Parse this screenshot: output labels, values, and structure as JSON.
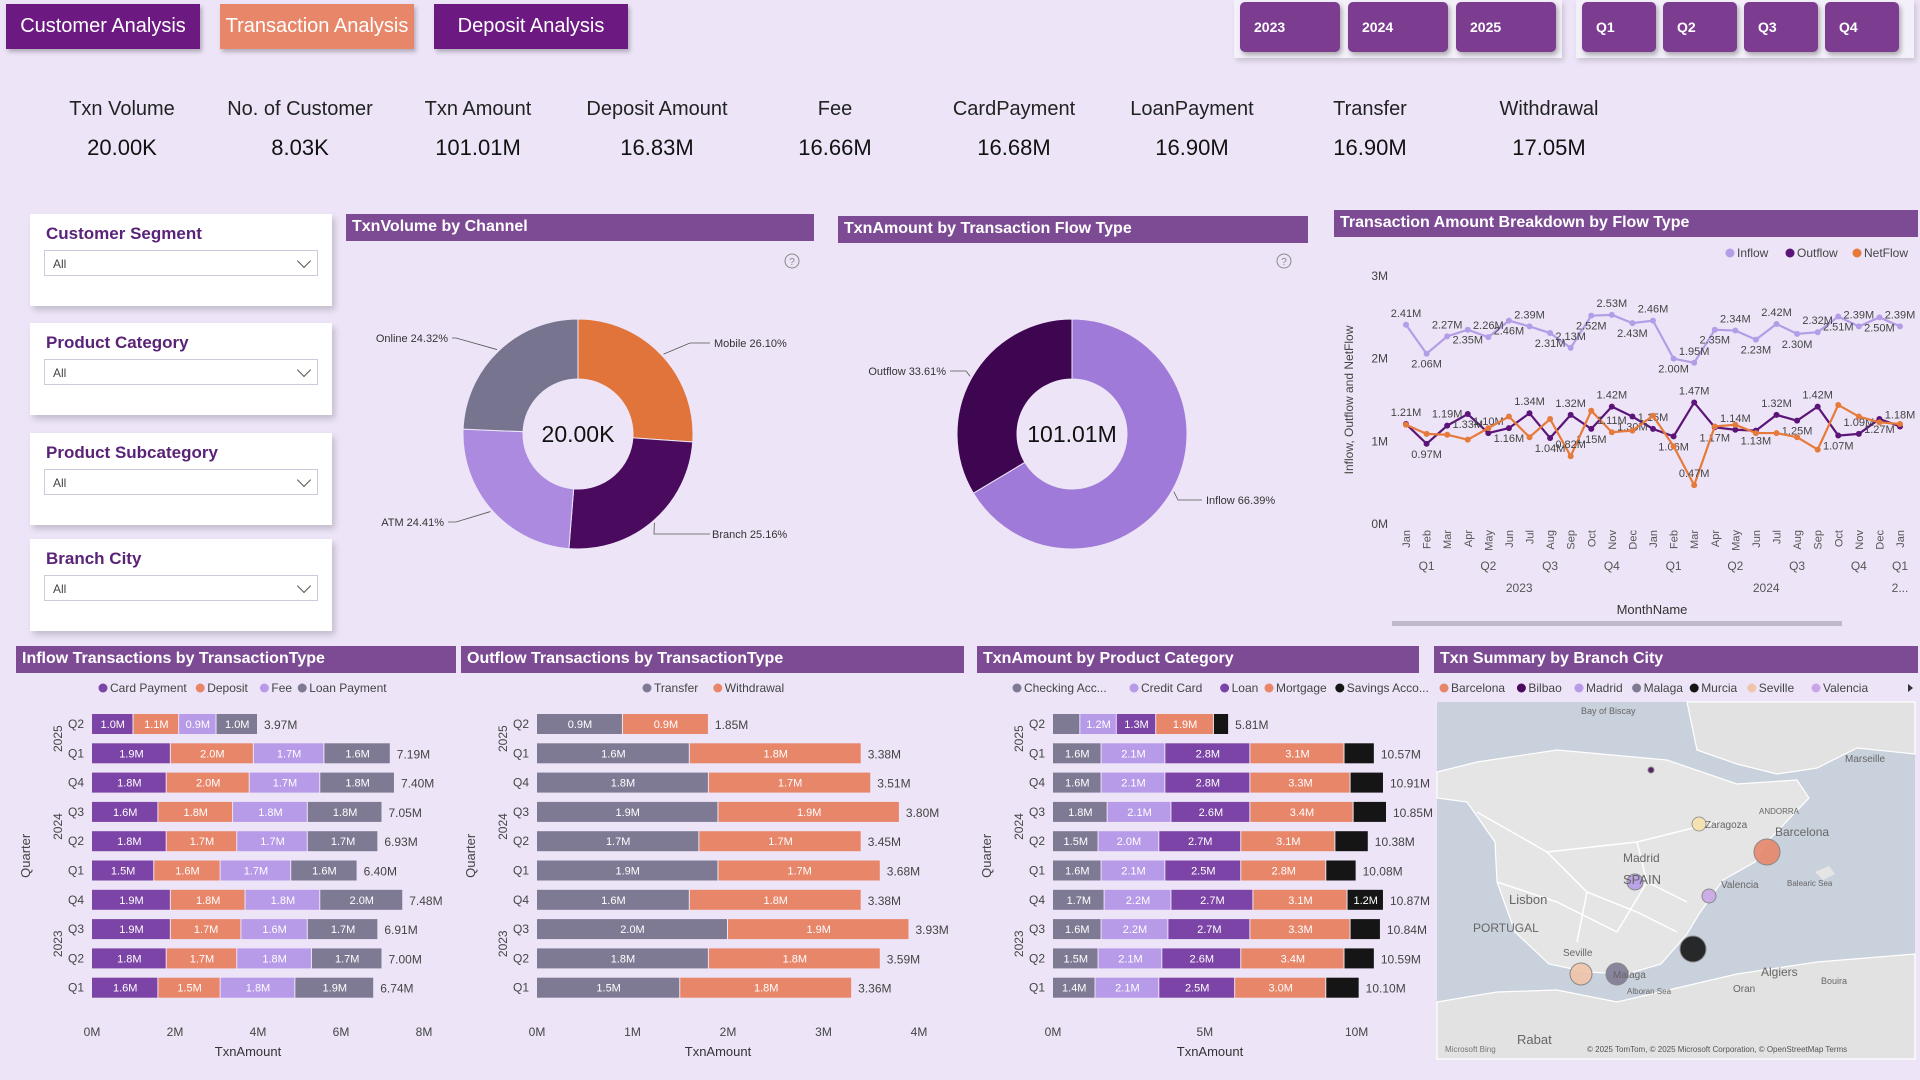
{
  "nav": {
    "customer": "Customer Analysis",
    "transaction": "Transaction Analysis",
    "deposit": "Deposit Analysis"
  },
  "years": [
    "2023",
    "2024",
    "2025"
  ],
  "quarters": [
    "Q1",
    "Q2",
    "Q3",
    "Q4"
  ],
  "kpis": [
    {
      "label": "Txn Volume",
      "value": "20.00K"
    },
    {
      "label": "No. of Customer",
      "value": "8.03K"
    },
    {
      "label": "Txn Amount",
      "value": "101.01M"
    },
    {
      "label": "Deposit Amount",
      "value": "16.83M"
    },
    {
      "label": "Fee",
      "value": "16.66M"
    },
    {
      "label": "CardPayment",
      "value": "16.68M"
    },
    {
      "label": "LoanPayment",
      "value": "16.90M"
    },
    {
      "label": "Transfer",
      "value": "16.90M"
    },
    {
      "label": "Withdrawal",
      "value": "17.05M"
    }
  ],
  "filters": [
    {
      "title": "Customer Segment",
      "value": "All"
    },
    {
      "title": "Product Category",
      "value": "All"
    },
    {
      "title": "Product Subcategory",
      "value": "All"
    },
    {
      "title": "Branch City",
      "value": "All"
    }
  ],
  "colors": {
    "accent": "#6c1a82",
    "orange": "#e8866a",
    "panel": "#7c4b94"
  },
  "icons": {
    "help": "question-circle-icon",
    "chevron": "chevron-down-icon"
  },
  "donut1": {
    "title": "TxnVolume by Channel",
    "center": "20.00K",
    "chart_data": {
      "type": "pie",
      "slices": [
        {
          "name": "Mobile",
          "pct": 26.1,
          "label": "Mobile 26.10%",
          "color": "#e0743a"
        },
        {
          "name": "Branch",
          "pct": 25.16,
          "label": "Branch 25.16%",
          "color": "#4a0a5e"
        },
        {
          "name": "ATM",
          "pct": 24.41,
          "label": "ATM 24.41%",
          "color": "#ac8ae0"
        },
        {
          "name": "Online",
          "pct": 24.32,
          "label": "Online 24.32%",
          "color": "#777490"
        }
      ]
    }
  },
  "donut2": {
    "title": "TxnAmount by Transaction Flow Type",
    "center": "101.01M",
    "chart_data": {
      "type": "pie",
      "slices": [
        {
          "name": "Inflow",
          "pct": 66.39,
          "label": "Inflow 66.39%",
          "color": "#a07ad8"
        },
        {
          "name": "Outflow",
          "pct": 33.61,
          "label": "Outflow 33.61%",
          "color": "#3e0650"
        }
      ]
    }
  },
  "linechart": {
    "title": "Transaction Amount Breakdown by Flow Type",
    "legend": [
      "Inflow",
      "Outflow",
      "NetFlow"
    ],
    "ylabel": "Inflow, Outflow and NetFlow",
    "xlabel": "MonthName",
    "yticks": [
      "3M",
      "2M",
      "1M",
      "0M"
    ],
    "months": [
      "Jan",
      "Feb",
      "Mar",
      "Apr",
      "May",
      "Jun",
      "Jul",
      "Aug",
      "Sep",
      "Oct",
      "Nov",
      "Dec",
      "Jan",
      "Feb",
      "Mar",
      "Apr",
      "May",
      "Jun",
      "Jul",
      "Aug",
      "Sep",
      "Oct",
      "Nov",
      "Dec",
      "Jan"
    ],
    "quarter_labels": [
      "Q1",
      "Q2",
      "Q3",
      "Q4",
      "Q1",
      "Q2",
      "Q3",
      "Q4",
      "Q1"
    ],
    "year_labels": [
      "2023",
      "2024",
      "2..."
    ],
    "chart_data": {
      "type": "line",
      "ylim": [
        0,
        3
      ],
      "series": [
        {
          "name": "Inflow",
          "color": "#b39de6",
          "values": [
            2.41,
            2.06,
            2.27,
            2.35,
            2.26,
            2.46,
            2.39,
            2.31,
            2.13,
            2.52,
            2.53,
            2.43,
            2.46,
            2.0,
            1.95,
            2.35,
            2.34,
            2.23,
            2.42,
            2.3,
            2.32,
            2.51,
            2.39,
            2.5,
            2.39
          ],
          "labels": [
            "2.41M",
            "2.06M",
            "2.27M",
            "2.35M",
            "2.26M",
            "2.46M",
            "2.39M",
            "2.31M",
            "2.13M",
            "2.52M",
            "2.53M",
            "2.43M",
            "2.46M",
            "2.00M",
            "1.95M",
            "2.35M",
            "2.34M",
            "2.23M",
            "2.42M",
            "2.30M",
            "2.32M",
            "2.51M",
            "2.39M",
            "2.50M",
            "2.39M"
          ]
        },
        {
          "name": "Outflow",
          "color": "#5b1477",
          "values": [
            1.21,
            0.97,
            1.19,
            1.33,
            1.1,
            1.16,
            1.34,
            1.04,
            1.32,
            1.15,
            1.42,
            1.3,
            1.15,
            1.06,
            1.47,
            1.17,
            1.14,
            1.13,
            1.32,
            1.25,
            1.42,
            1.07,
            1.09,
            1.27,
            1.18
          ],
          "labels": [
            "1.21M",
            "0.97M",
            "1.19M",
            "1.33M",
            "1.10M",
            "1.16M",
            "1.34M",
            "1.04M",
            "1.32M",
            "1.15M",
            "1.42M",
            "1.30M",
            "1.15M",
            "1.06M",
            "1.47M",
            "1.17M",
            "1.14M",
            "1.13M",
            "1.32M",
            "1.25M",
            "1.42M",
            "1.07M",
            "1.09M",
            "1.27M",
            "1.18M"
          ]
        },
        {
          "name": "NetFlow",
          "color": "#e67a3a",
          "values": [
            1.2,
            1.09,
            1.08,
            1.02,
            1.16,
            1.3,
            1.05,
            1.27,
            0.82,
            1.37,
            1.11,
            1.13,
            1.31,
            0.94,
            0.47,
            1.18,
            1.2,
            1.1,
            1.1,
            1.05,
            0.9,
            1.44,
            1.3,
            1.23,
            1.21
          ],
          "labels": [
            "",
            "",
            "",
            "",
            "",
            "",
            "",
            "",
            "0.82M",
            "",
            "1.11M",
            "",
            "",
            "",
            "0.47M",
            "",
            "",
            "",
            "",
            "",
            "",
            "",
            "",
            "",
            ""
          ]
        }
      ]
    }
  },
  "inflow_bars": {
    "title": "Inflow Transactions by TransactionType",
    "legend": [
      {
        "name": "Card Payment",
        "color": "#7b44a6"
      },
      {
        "name": "Deposit",
        "color": "#e8866a"
      },
      {
        "name": "Fee",
        "color": "#b79ae8"
      },
      {
        "name": "Loan Payment",
        "color": "#7e7a94"
      }
    ],
    "xlabel": "TxnAmount",
    "ylabel": "Quarter",
    "xticks": [
      "0M",
      "2M",
      "4M",
      "6M",
      "8M"
    ],
    "chart_data": {
      "type": "bar",
      "xlim": [
        0,
        8
      ],
      "rows": [
        {
          "year": "2025",
          "q": "Q2",
          "values": [
            1.0,
            1.1,
            0.9,
            1.0
          ],
          "labels": [
            "1.0M",
            "1.1M",
            "0.9M",
            "1.0M"
          ],
          "total": "3.97M"
        },
        {
          "year": "2025",
          "q": "Q1",
          "values": [
            1.9,
            2.0,
            1.7,
            1.6
          ],
          "labels": [
            "1.9M",
            "2.0M",
            "1.7M",
            "1.6M"
          ],
          "total": "7.19M"
        },
        {
          "year": "2024",
          "q": "Q4",
          "values": [
            1.8,
            2.0,
            1.7,
            1.8
          ],
          "labels": [
            "1.8M",
            "2.0M",
            "1.7M",
            "1.8M"
          ],
          "total": "7.40M"
        },
        {
          "year": "2024",
          "q": "Q3",
          "values": [
            1.6,
            1.8,
            1.8,
            1.8
          ],
          "labels": [
            "1.6M",
            "1.8M",
            "1.8M",
            "1.8M"
          ],
          "total": "7.05M"
        },
        {
          "year": "2024",
          "q": "Q2",
          "values": [
            1.8,
            1.7,
            1.7,
            1.7
          ],
          "labels": [
            "1.8M",
            "1.7M",
            "1.7M",
            "1.7M"
          ],
          "total": "6.93M"
        },
        {
          "year": "2024",
          "q": "Q1",
          "values": [
            1.5,
            1.6,
            1.7,
            1.6
          ],
          "labels": [
            "1.5M",
            "1.6M",
            "1.7M",
            "1.6M"
          ],
          "total": "6.40M"
        },
        {
          "year": "2023",
          "q": "Q4",
          "values": [
            1.9,
            1.8,
            1.8,
            2.0
          ],
          "labels": [
            "1.9M",
            "1.8M",
            "1.8M",
            "2.0M"
          ],
          "total": "7.48M"
        },
        {
          "year": "2023",
          "q": "Q3",
          "values": [
            1.9,
            1.7,
            1.6,
            1.7
          ],
          "labels": [
            "1.9M",
            "1.7M",
            "1.6M",
            "1.7M"
          ],
          "total": "6.91M"
        },
        {
          "year": "2023",
          "q": "Q2",
          "values": [
            1.8,
            1.7,
            1.8,
            1.7
          ],
          "labels": [
            "1.8M",
            "1.7M",
            "1.8M",
            "1.7M"
          ],
          "total": "7.00M"
        },
        {
          "year": "2023",
          "q": "Q1",
          "values": [
            1.6,
            1.5,
            1.8,
            1.9
          ],
          "labels": [
            "1.6M",
            "1.5M",
            "1.8M",
            "1.9M"
          ],
          "total": "6.74M"
        }
      ]
    }
  },
  "outflow_bars": {
    "title": "Outflow Transactions by TransactionType",
    "legend": [
      {
        "name": "Transfer",
        "color": "#7e7a94"
      },
      {
        "name": "Withdrawal",
        "color": "#e8866a"
      }
    ],
    "xlabel": "TxnAmount",
    "ylabel": "Quarter",
    "xticks": [
      "0M",
      "1M",
      "2M",
      "3M",
      "4M"
    ],
    "chart_data": {
      "type": "bar",
      "xlim": [
        0,
        4
      ],
      "rows": [
        {
          "year": "2025",
          "q": "Q2",
          "values": [
            0.9,
            0.9
          ],
          "labels": [
            "0.9M",
            "0.9M"
          ],
          "total": "1.85M"
        },
        {
          "year": "2025",
          "q": "Q1",
          "values": [
            1.6,
            1.8
          ],
          "labels": [
            "1.6M",
            "1.8M"
          ],
          "total": "3.38M"
        },
        {
          "year": "2024",
          "q": "Q4",
          "values": [
            1.8,
            1.7
          ],
          "labels": [
            "1.8M",
            "1.7M"
          ],
          "total": "3.51M"
        },
        {
          "year": "2024",
          "q": "Q3",
          "values": [
            1.9,
            1.9
          ],
          "labels": [
            "1.9M",
            "1.9M"
          ],
          "total": "3.80M"
        },
        {
          "year": "2024",
          "q": "Q2",
          "values": [
            1.7,
            1.7
          ],
          "labels": [
            "1.7M",
            "1.7M"
          ],
          "total": "3.45M"
        },
        {
          "year": "2024",
          "q": "Q1",
          "values": [
            1.9,
            1.7
          ],
          "labels": [
            "1.9M",
            "1.7M"
          ],
          "total": "3.68M"
        },
        {
          "year": "2023",
          "q": "Q4",
          "values": [
            1.6,
            1.8
          ],
          "labels": [
            "1.6M",
            "1.8M"
          ],
          "total": "3.38M"
        },
        {
          "year": "2023",
          "q": "Q3",
          "values": [
            2.0,
            1.9
          ],
          "labels": [
            "2.0M",
            "1.9M"
          ],
          "total": "3.93M"
        },
        {
          "year": "2023",
          "q": "Q2",
          "values": [
            1.8,
            1.8
          ],
          "labels": [
            "1.8M",
            "1.8M"
          ],
          "total": "3.59M"
        },
        {
          "year": "2023",
          "q": "Q1",
          "values": [
            1.5,
            1.8
          ],
          "labels": [
            "1.5M",
            "1.8M"
          ],
          "total": "3.36M"
        }
      ]
    }
  },
  "product_bars": {
    "title": "TxnAmount by Product Category",
    "legend": [
      {
        "name": "Checking Acc...",
        "color": "#7e7a94"
      },
      {
        "name": "Credit Card",
        "color": "#b79ae8"
      },
      {
        "name": "Loan",
        "color": "#7b44a6"
      },
      {
        "name": "Mortgage",
        "color": "#e8866a"
      },
      {
        "name": "Savings Acco...",
        "color": "#151515"
      }
    ],
    "xlabel": "TxnAmount",
    "ylabel": "Quarter",
    "xticks": [
      "0M",
      "5M",
      "10M"
    ],
    "chart_data": {
      "type": "bar",
      "xlim": [
        0,
        11
      ],
      "rows": [
        {
          "year": "2025",
          "q": "Q2",
          "values": [
            0.9,
            1.2,
            1.3,
            1.9,
            0.5
          ],
          "labels": [
            "",
            "1.2M",
            "1.3M",
            "1.9M",
            ""
          ],
          "total": "5.81M"
        },
        {
          "year": "2025",
          "q": "Q1",
          "values": [
            1.6,
            2.1,
            2.8,
            3.1,
            1.0
          ],
          "labels": [
            "1.6M",
            "2.1M",
            "2.8M",
            "3.1M",
            ""
          ],
          "total": "10.57M"
        },
        {
          "year": "2024",
          "q": "Q4",
          "values": [
            1.6,
            2.1,
            2.8,
            3.3,
            1.1
          ],
          "labels": [
            "1.6M",
            "2.1M",
            "2.8M",
            "3.3M",
            ""
          ],
          "total": "10.91M"
        },
        {
          "year": "2024",
          "q": "Q3",
          "values": [
            1.8,
            2.1,
            2.6,
            3.4,
            1.1
          ],
          "labels": [
            "1.8M",
            "2.1M",
            "2.6M",
            "3.4M",
            ""
          ],
          "total": "10.85M"
        },
        {
          "year": "2024",
          "q": "Q2",
          "values": [
            1.5,
            2.0,
            2.7,
            3.1,
            1.1
          ],
          "labels": [
            "1.5M",
            "2.0M",
            "2.7M",
            "3.1M",
            ""
          ],
          "total": "10.38M"
        },
        {
          "year": "2024",
          "q": "Q1",
          "values": [
            1.6,
            2.1,
            2.5,
            2.8,
            1.0
          ],
          "labels": [
            "1.6M",
            "2.1M",
            "2.5M",
            "2.8M",
            ""
          ],
          "total": "10.08M"
        },
        {
          "year": "2023",
          "q": "Q4",
          "values": [
            1.7,
            2.2,
            2.7,
            3.1,
            1.2
          ],
          "labels": [
            "1.7M",
            "2.2M",
            "2.7M",
            "3.1M",
            "1.2M"
          ],
          "total": "10.87M"
        },
        {
          "year": "2023",
          "q": "Q3",
          "values": [
            1.6,
            2.2,
            2.7,
            3.3,
            1.0
          ],
          "labels": [
            "1.6M",
            "2.2M",
            "2.7M",
            "3.3M",
            ""
          ],
          "total": "10.84M"
        },
        {
          "year": "2023",
          "q": "Q2",
          "values": [
            1.5,
            2.1,
            2.6,
            3.4,
            1.0
          ],
          "labels": [
            "1.5M",
            "2.1M",
            "2.6M",
            "3.4M",
            ""
          ],
          "total": "10.59M"
        },
        {
          "year": "2023",
          "q": "Q1",
          "values": [
            1.4,
            2.1,
            2.5,
            3.0,
            1.1
          ],
          "labels": [
            "1.4M",
            "2.1M",
            "2.5M",
            "3.0M",
            ""
          ],
          "total": "10.10M"
        }
      ]
    }
  },
  "map": {
    "title": "Txn Summary by Branch City",
    "legend": [
      {
        "name": "Barcelona",
        "color": "#e8866a"
      },
      {
        "name": "Bilbao",
        "color": "#4a0a5e"
      },
      {
        "name": "Madrid",
        "color": "#b79ae8"
      },
      {
        "name": "Malaga",
        "color": "#7e7a94"
      },
      {
        "name": "Murcia",
        "color": "#151515"
      },
      {
        "name": "Seville",
        "color": "#f1c3a8"
      },
      {
        "name": "Valencia",
        "color": "#c9a6e6"
      }
    ],
    "places": [
      "Bay of Biscay",
      "Zaragoza",
      "Barcelona",
      "Madrid",
      "SPAIN",
      "Valencia",
      "Lisbon",
      "PORTUGAL",
      "Seville",
      "Malaga",
      "Algiers",
      "Oran",
      "Rabat",
      "Marseille",
      "ANDORRA",
      "Balearic Sea",
      "Alboran Sea",
      "Bouira"
    ],
    "attribution": "© 2025 TomTom, © 2025 Microsoft Corporation, © OpenStreetMap  Terms",
    "brand": "Microsoft Bing"
  }
}
